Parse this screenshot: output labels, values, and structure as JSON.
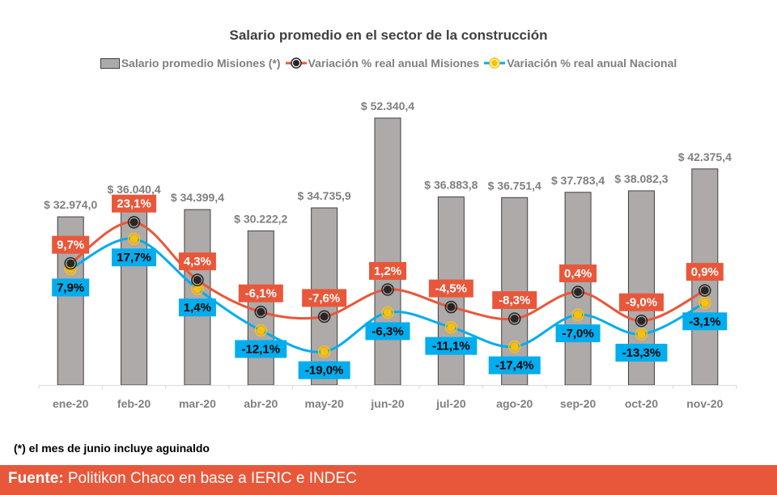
{
  "footer": {
    "label": "Fuente:",
    "text": " Politikon Chaco en base a IERIC e INDEC"
  },
  "note": "(*) el mes de junio incluye aguinaldo",
  "colors": {
    "bar": "#aeaaaa",
    "bar_border": "#404040",
    "misiones": "#e9573a",
    "nacional": "#00adee",
    "marker_misiones": "#262626",
    "marker_nacional": "#ffc000",
    "footer_bg": "#e9573a"
  },
  "chart_data": {
    "type": "bar+line",
    "title": "Salario promedio en el sector de la construcción",
    "categories": [
      "ene-20",
      "feb-20",
      "mar-20",
      "abr-20",
      "may-20",
      "jun-20",
      "jul-20",
      "ago-20",
      "sep-20",
      "oct-20",
      "nov-20"
    ],
    "series": [
      {
        "name": "Salario promedio Misiones (*)",
        "type": "bar",
        "values": [
          32974.0,
          36040.4,
          34399.4,
          30222.2,
          34735.9,
          52340.4,
          36883.8,
          36751.4,
          37783.4,
          38082.3,
          42375.4
        ],
        "labels": [
          "$ 32.974,0",
          "$ 36.040,4",
          "$ 34.399,4",
          "$ 30.222,2",
          "$ 34.735,9",
          "$ 52.340,4",
          "$ 36.883,8",
          "$ 36.751,4",
          "$ 37.783,4",
          "$ 38.082,3",
          "$ 42.375,4"
        ]
      },
      {
        "name": "Variación % real anual Misiones",
        "type": "line",
        "values": [
          9.7,
          23.1,
          4.3,
          -6.1,
          -7.6,
          1.2,
          -4.5,
          -8.3,
          0.4,
          -9.0,
          0.9
        ],
        "labels": [
          "9,7%",
          "23,1%",
          "4,3%",
          "-6,1%",
          "-7,6%",
          "1,2%",
          "-4,5%",
          "-8,3%",
          "0,4%",
          "-9,0%",
          "0,9%"
        ]
      },
      {
        "name": "Variación % real anual Nacional",
        "type": "line",
        "values": [
          7.9,
          17.7,
          1.4,
          -12.1,
          -19.0,
          -6.3,
          -11.1,
          -17.4,
          -7.0,
          -13.3,
          -3.1
        ],
        "labels": [
          "7,9%",
          "17,7%",
          "1,4%",
          "-12,1%",
          "-19,0%",
          "-6,3%",
          "-11,1%",
          "-17,4%",
          "-7,0%",
          "-13,3%",
          "-3,1%"
        ]
      }
    ],
    "legend_position": "top",
    "grid": false
  }
}
